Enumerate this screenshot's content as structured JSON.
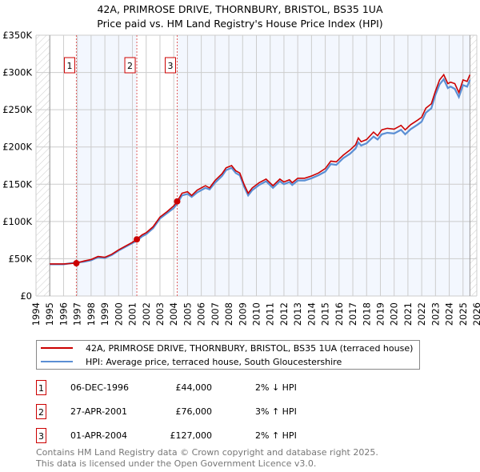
{
  "chart_data": {
    "type": "line",
    "title": "42A, PRIMROSE DRIVE, THORNBURY, BRISTOL, BS35 1UA",
    "subtitle": "Price paid vs. HM Land Registry's House Price Index (HPI)",
    "xlim": [
      1994,
      2026
    ],
    "ylim": [
      0,
      350000
    ],
    "y_ticks": [
      0,
      50000,
      100000,
      150000,
      200000,
      250000,
      300000,
      350000
    ],
    "y_tick_labels": [
      "£0",
      "£50K",
      "£100K",
      "£150K",
      "£200K",
      "£250K",
      "£300K",
      "£350K"
    ],
    "x_ticks": [
      "1994",
      "1995",
      "1996",
      "1997",
      "1998",
      "1999",
      "2000",
      "2001",
      "2002",
      "2003",
      "2004",
      "2005",
      "2006",
      "2007",
      "2008",
      "2009",
      "2010",
      "2011",
      "2012",
      "2013",
      "2014",
      "2015",
      "2016",
      "2017",
      "2018",
      "2019",
      "2020",
      "2021",
      "2022",
      "2023",
      "2024",
      "2025",
      "2026"
    ],
    "grid": true,
    "legend_placement": "below",
    "x": [
      1995.0,
      1996.0,
      1996.9,
      1997.5,
      1998.0,
      1998.5,
      1999.0,
      1999.5,
      2000.0,
      2000.5,
      2001.0,
      2001.3,
      2001.7,
      2002.0,
      2002.5,
      2003.0,
      2003.5,
      2004.0,
      2004.25,
      2004.6,
      2005.0,
      2005.3,
      2005.7,
      2006.3,
      2006.6,
      2007.0,
      2007.5,
      2007.8,
      2008.2,
      2008.5,
      2008.8,
      2009.1,
      2009.4,
      2009.7,
      2010.2,
      2010.7,
      2011.2,
      2011.7,
      2012.0,
      2012.4,
      2012.6,
      2013.0,
      2013.5,
      2014.0,
      2014.5,
      2015.0,
      2015.4,
      2015.8,
      2016.3,
      2016.8,
      2017.2,
      2017.4,
      2017.6,
      2018.0,
      2018.5,
      2018.8,
      2019.1,
      2019.5,
      2020.0,
      2020.5,
      2020.8,
      2021.2,
      2021.7,
      2022.0,
      2022.3,
      2022.7,
      2023.0,
      2023.3,
      2023.6,
      2023.9,
      2024.1,
      2024.4,
      2024.7,
      2025.0,
      2025.3,
      2025.5
    ],
    "series": [
      {
        "name": "42A, PRIMROSE DRIVE, THORNBURY, BRISTOL, BS35 1UA (terraced house)",
        "color": "#cc0000",
        "values": [
          43000,
          43000,
          44000,
          47000,
          49000,
          53000,
          52000,
          56000,
          62000,
          67000,
          72000,
          76000,
          82000,
          85000,
          93000,
          106000,
          113000,
          121000,
          127000,
          138000,
          140000,
          135000,
          142000,
          148000,
          145000,
          155000,
          164000,
          172000,
          175000,
          168000,
          165000,
          150000,
          138000,
          145000,
          152000,
          157000,
          148000,
          157000,
          153000,
          156000,
          152000,
          158000,
          158000,
          161000,
          165000,
          171000,
          181000,
          180000,
          189000,
          196000,
          203000,
          212000,
          207000,
          210000,
          220000,
          215000,
          223000,
          225000,
          224000,
          229000,
          223000,
          230000,
          236000,
          240000,
          252000,
          258000,
          275000,
          290000,
          297000,
          285000,
          287000,
          285000,
          273000,
          290000,
          288000,
          297000
        ]
      },
      {
        "name": "HPI: Average price, terraced house, South Gloucestershire",
        "color": "#5b8fd4",
        "values": [
          42500,
          42500,
          45000,
          46000,
          48000,
          52000,
          51000,
          55000,
          61000,
          66000,
          71000,
          74000,
          80000,
          83000,
          91000,
          104000,
          111000,
          118000,
          124000,
          135000,
          137000,
          133000,
          139000,
          145000,
          143000,
          152000,
          161000,
          169000,
          172000,
          165000,
          162000,
          147000,
          135000,
          142000,
          149000,
          154000,
          145000,
          154000,
          150000,
          153000,
          149000,
          155000,
          155000,
          158000,
          162000,
          167000,
          177000,
          176000,
          185000,
          191000,
          198000,
          206000,
          202000,
          205000,
          214000,
          210000,
          217000,
          219000,
          218000,
          223000,
          217000,
          224000,
          230000,
          234000,
          246000,
          252000,
          270000,
          284000,
          291000,
          279000,
          281000,
          278000,
          267000,
          283000,
          281000,
          290000
        ]
      }
    ],
    "sales": [
      {
        "id": "1",
        "x": 1996.93,
        "value": 44000
      },
      {
        "id": "2",
        "x": 2001.32,
        "value": 76000
      },
      {
        "id": "3",
        "x": 2004.25,
        "value": 127000
      }
    ]
  },
  "legend": {
    "property": "42A, PRIMROSE DRIVE, THORNBURY, BRISTOL, BS35 1UA (terraced house)",
    "hpi": "HPI: Average price, terraced house, South Gloucestershire"
  },
  "transactions": [
    {
      "id": "1",
      "date": "06-DEC-1996",
      "price": "£44,000",
      "hpi": "2% ↓ HPI"
    },
    {
      "id": "2",
      "date": "27-APR-2001",
      "price": "£76,000",
      "hpi": "3% ↑ HPI"
    },
    {
      "id": "3",
      "date": "01-APR-2004",
      "price": "£127,000",
      "hpi": "2% ↑ HPI"
    }
  ],
  "footer": {
    "line1": "Contains HM Land Registry data © Crown copyright and database right 2025.",
    "line2": "This data is licensed under the Open Government Licence v3.0."
  }
}
